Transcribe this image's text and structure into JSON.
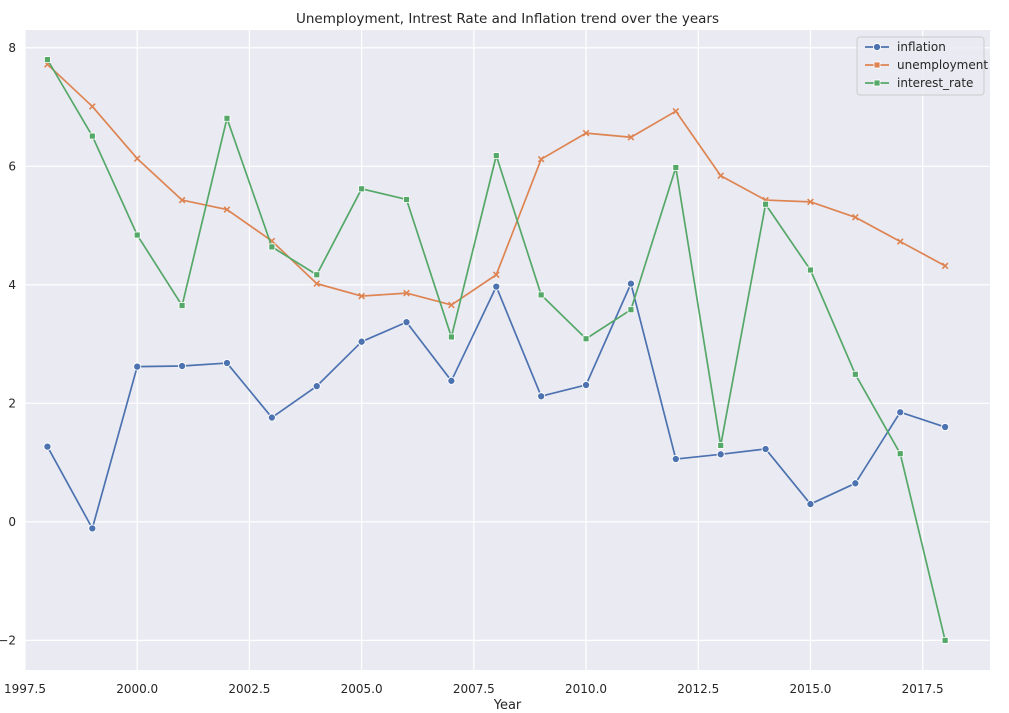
{
  "chart_data": {
    "type": "line",
    "title": "Unemployment, Intrest Rate and Inflation trend over the years",
    "xlabel": "Year",
    "ylabel": "",
    "xlim": [
      1997.5,
      2019
    ],
    "ylim": [
      -2.5,
      8.3
    ],
    "xticks": [
      1997.5,
      2000.0,
      2002.5,
      2005.0,
      2007.5,
      2010.0,
      2012.5,
      2015.0,
      2017.5
    ],
    "xtick_labels": [
      "1997.5",
      "2000.0",
      "2002.5",
      "2005.0",
      "2007.5",
      "2010.0",
      "2012.5",
      "2015.0",
      "2017.5"
    ],
    "yticks": [
      -2,
      0,
      2,
      4,
      6,
      8
    ],
    "ytick_labels": [
      "−2",
      "0",
      "2",
      "4",
      "6",
      "8"
    ],
    "grid": true,
    "legend_position": "top-right",
    "x": [
      1998,
      1999,
      2000,
      2001,
      2002,
      2003,
      2004,
      2005,
      2006,
      2007,
      2008,
      2009,
      2010,
      2011,
      2012,
      2013,
      2014,
      2015,
      2016,
      2017,
      2018
    ],
    "series": [
      {
        "name": "inflation",
        "color": "#4c72b0",
        "marker": "circle",
        "values": [
          1.27,
          -0.11,
          2.62,
          2.63,
          2.68,
          1.76,
          2.29,
          3.04,
          3.37,
          2.38,
          3.97,
          2.12,
          2.31,
          4.02,
          1.06,
          1.14,
          1.23,
          0.3,
          0.65,
          1.85,
          1.6
        ]
      },
      {
        "name": "unemployment",
        "color": "#dd8452",
        "marker": "x",
        "values": [
          7.72,
          7.01,
          6.13,
          5.43,
          5.27,
          4.74,
          4.02,
          3.81,
          3.86,
          3.66,
          4.17,
          6.12,
          6.56,
          6.49,
          6.93,
          5.84,
          5.43,
          5.4,
          5.14,
          4.73,
          4.32
        ]
      },
      {
        "name": "interest_rate",
        "color": "#55a868",
        "marker": "square",
        "values": [
          7.8,
          6.51,
          4.84,
          3.65,
          6.81,
          4.64,
          4.17,
          5.62,
          5.44,
          3.12,
          6.18,
          3.83,
          3.09,
          3.58,
          5.98,
          1.29,
          5.36,
          4.25,
          2.49,
          1.15,
          -2.0
        ]
      }
    ]
  }
}
